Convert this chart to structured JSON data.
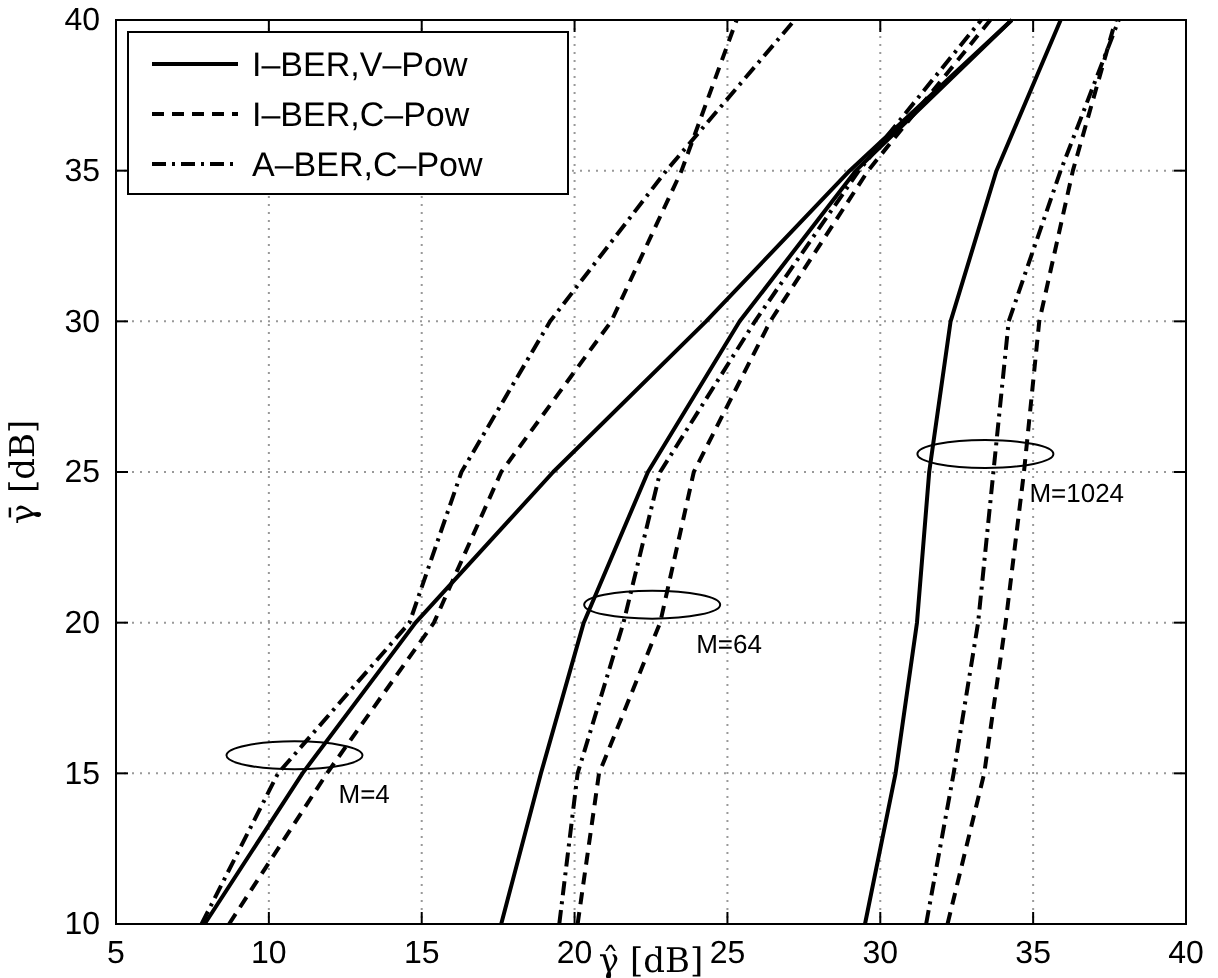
{
  "chart_data": {
    "type": "line",
    "xlabel": "γ̂ [dB]",
    "ylabel": "γ̄ [dB]",
    "xlim": [
      5,
      40
    ],
    "xticks": [
      5,
      10,
      15,
      20,
      25,
      30,
      35,
      40
    ],
    "ylim": [
      10,
      40
    ],
    "yticks": [
      10,
      15,
      20,
      25,
      30,
      35,
      40
    ],
    "grid": true,
    "legend": "top left",
    "marker": "none",
    "series": [
      {
        "name": "I–BER,V–Pow",
        "color": "#000000",
        "line_style": "solid",
        "x": [
          7.9,
          11.1,
          14.8,
          19.3,
          24.3,
          29.0,
          34.3
        ],
        "values": [
          10,
          15,
          20,
          25,
          30,
          35,
          40
        ]
      },
      {
        "name": "I–BER,C–Pow",
        "color": "#000000",
        "line_style": "dashed",
        "x": [
          8.7,
          11.9,
          15.4,
          17.6,
          21.2,
          23.5,
          25.3
        ],
        "values": [
          10,
          15,
          20,
          25,
          30,
          35,
          40
        ]
      },
      {
        "name": "A–BER,C–Pow",
        "color": "#000000",
        "line_style": "dashdot",
        "x": [
          7.8,
          10.3,
          14.6,
          16.3,
          19.2,
          23.0,
          27.2
        ],
        "values": [
          10,
          15,
          20,
          25,
          30,
          35,
          40
        ]
      },
      {
        "color": "#000000",
        "line_style": "solid",
        "x": [
          17.6,
          18.9,
          20.3,
          22.4,
          25.4,
          29.2,
          34.3
        ],
        "values": [
          10,
          15,
          20,
          25,
          30,
          35,
          40
        ]
      },
      {
        "color": "#000000",
        "line_style": "dashed",
        "x": [
          20.1,
          20.8,
          22.8,
          23.9,
          26.4,
          29.6,
          33.6
        ],
        "values": [
          10,
          15,
          20,
          25,
          30,
          35,
          40
        ]
      },
      {
        "color": "#000000",
        "line_style": "dashdot",
        "x": [
          19.5,
          20.1,
          21.6,
          22.8,
          25.9,
          29.3,
          33.3
        ],
        "values": [
          10,
          15,
          20,
          25,
          30,
          35,
          40
        ]
      },
      {
        "color": "#000000",
        "line_style": "solid",
        "x": [
          29.5,
          30.5,
          31.2,
          31.6,
          32.3,
          33.8,
          35.9
        ],
        "values": [
          10,
          15,
          20,
          25,
          30,
          35,
          40
        ]
      },
      {
        "color": "#000000",
        "line_style": "dashed",
        "x": [
          32.2,
          33.4,
          34.1,
          34.7,
          35.2,
          36.3,
          37.7
        ],
        "values": [
          10,
          15,
          20,
          25,
          30,
          35,
          40
        ]
      },
      {
        "color": "#000000",
        "line_style": "dashdot",
        "x": [
          31.5,
          32.4,
          33.2,
          33.7,
          34.2,
          35.9,
          37.8
        ],
        "values": [
          10,
          15,
          20,
          25,
          30,
          35,
          40
        ]
      }
    ],
    "annotations": [
      {
        "text": "M=4",
        "x": 11.1,
        "y": 15
      },
      {
        "text": "M=64",
        "x": 22.8,
        "y": 20
      },
      {
        "text": "M=1024",
        "x": 33.7,
        "y": 25
      }
    ]
  }
}
